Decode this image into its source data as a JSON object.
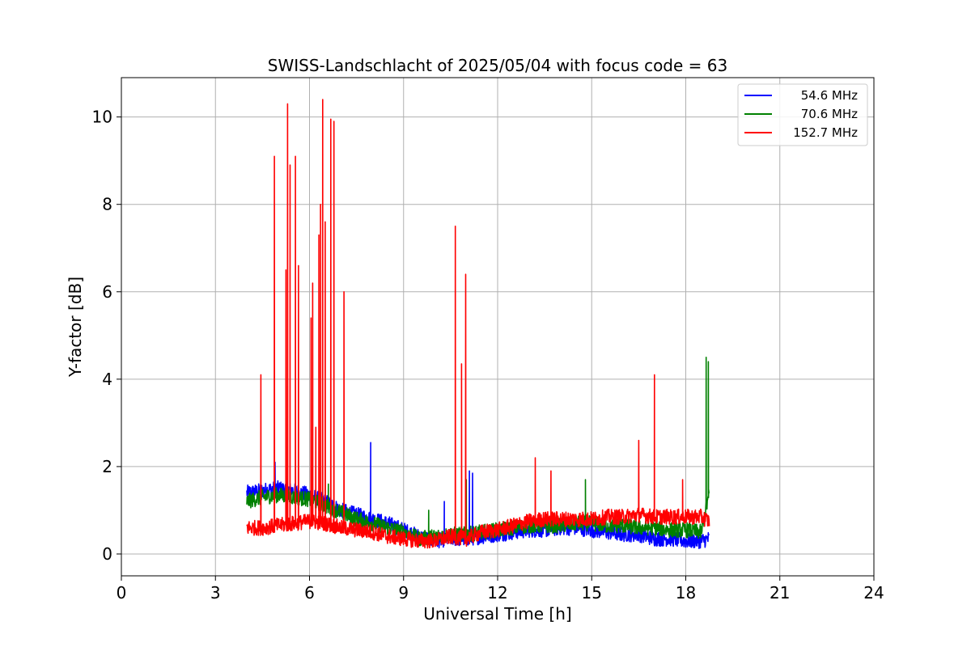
{
  "chart_data": {
    "type": "line",
    "title": "SWISS-Landschlacht of 2025/05/04 with focus code = 63",
    "xlabel": "Universal Time [h]",
    "ylabel": "Y-factor [dB]",
    "xlim": [
      0,
      24
    ],
    "ylim": [
      -0.5,
      10.9
    ],
    "xticks": [
      0,
      3,
      6,
      9,
      12,
      15,
      18,
      21,
      24
    ],
    "yticks": [
      0,
      2,
      4,
      6,
      8,
      10
    ],
    "grid": true,
    "legend_position": "top-right",
    "series": [
      {
        "name": "54.6 MHz",
        "color": "#0000ff",
        "x": [
          4.0,
          4.5,
          5.0,
          5.5,
          6.0,
          6.5,
          7.0,
          7.5,
          8.0,
          8.5,
          9.0,
          9.5,
          10.0,
          10.5,
          11.0,
          11.5,
          12.0,
          12.5,
          13.0,
          13.5,
          14.0,
          14.5,
          15.0,
          15.5,
          16.0,
          16.5,
          17.0,
          17.5,
          18.0,
          18.5,
          18.75
        ],
        "y": [
          1.4,
          1.45,
          1.5,
          1.45,
          1.35,
          1.2,
          1.0,
          0.9,
          0.8,
          0.7,
          0.55,
          0.4,
          0.3,
          0.35,
          0.35,
          0.4,
          0.45,
          0.5,
          0.55,
          0.55,
          0.6,
          0.6,
          0.55,
          0.5,
          0.45,
          0.45,
          0.35,
          0.35,
          0.3,
          0.3,
          0.35
        ],
        "spikes": [
          [
            4.9,
            2.1
          ],
          [
            7.95,
            2.55
          ],
          [
            10.3,
            1.2
          ],
          [
            11.1,
            1.9
          ],
          [
            11.2,
            1.85
          ]
        ]
      },
      {
        "name": "70.6 MHz",
        "color": "#008000",
        "x": [
          4.0,
          4.5,
          5.0,
          5.5,
          6.0,
          6.5,
          7.0,
          7.5,
          8.0,
          8.5,
          9.0,
          9.5,
          10.0,
          10.5,
          11.0,
          11.5,
          12.0,
          12.5,
          13.0,
          13.5,
          14.0,
          14.5,
          15.0,
          15.5,
          16.0,
          16.5,
          17.0,
          17.5,
          18.0,
          18.5,
          18.75
        ],
        "y": [
          1.2,
          1.3,
          1.35,
          1.3,
          1.25,
          1.1,
          0.95,
          0.8,
          0.7,
          0.6,
          0.5,
          0.35,
          0.4,
          0.45,
          0.45,
          0.5,
          0.55,
          0.6,
          0.65,
          0.65,
          0.65,
          0.7,
          0.7,
          0.65,
          0.65,
          0.6,
          0.6,
          0.55,
          0.55,
          0.5,
          1.4
        ],
        "spikes": [
          [
            6.6,
            1.6
          ],
          [
            9.8,
            1.0
          ],
          [
            11.0,
            1.7
          ],
          [
            14.8,
            1.7
          ],
          [
            18.65,
            4.5
          ],
          [
            18.72,
            4.4
          ]
        ]
      },
      {
        "name": "152.7 MHz",
        "color": "#ff0000",
        "x": [
          4.0,
          4.5,
          5.0,
          5.5,
          6.0,
          6.5,
          7.0,
          7.5,
          8.0,
          8.5,
          9.0,
          9.5,
          10.0,
          10.5,
          11.0,
          11.5,
          12.0,
          12.5,
          13.0,
          13.5,
          14.0,
          14.5,
          15.0,
          15.5,
          16.0,
          16.5,
          17.0,
          17.5,
          18.0,
          18.5,
          18.75
        ],
        "y": [
          0.6,
          0.6,
          0.65,
          0.7,
          0.75,
          0.7,
          0.6,
          0.55,
          0.5,
          0.4,
          0.35,
          0.3,
          0.3,
          0.4,
          0.35,
          0.5,
          0.55,
          0.65,
          0.75,
          0.8,
          0.8,
          0.8,
          0.8,
          0.85,
          0.85,
          0.9,
          0.85,
          0.85,
          0.85,
          0.85,
          0.75
        ],
        "spikes": [
          [
            4.45,
            4.1
          ],
          [
            4.88,
            9.1
          ],
          [
            5.25,
            6.5
          ],
          [
            5.3,
            10.3
          ],
          [
            5.38,
            8.9
          ],
          [
            5.55,
            9.1
          ],
          [
            5.65,
            6.6
          ],
          [
            6.05,
            5.4
          ],
          [
            6.1,
            6.2
          ],
          [
            6.2,
            2.9
          ],
          [
            6.3,
            7.3
          ],
          [
            6.35,
            8.0
          ],
          [
            6.42,
            10.4
          ],
          [
            6.5,
            7.6
          ],
          [
            6.68,
            9.95
          ],
          [
            6.78,
            9.9
          ],
          [
            7.1,
            6.0
          ],
          [
            10.65,
            7.5
          ],
          [
            10.85,
            4.35
          ],
          [
            10.98,
            6.4
          ],
          [
            13.2,
            2.2
          ],
          [
            13.7,
            1.9
          ],
          [
            16.5,
            2.6
          ],
          [
            17.0,
            4.1
          ],
          [
            17.9,
            1.7
          ]
        ]
      }
    ]
  }
}
